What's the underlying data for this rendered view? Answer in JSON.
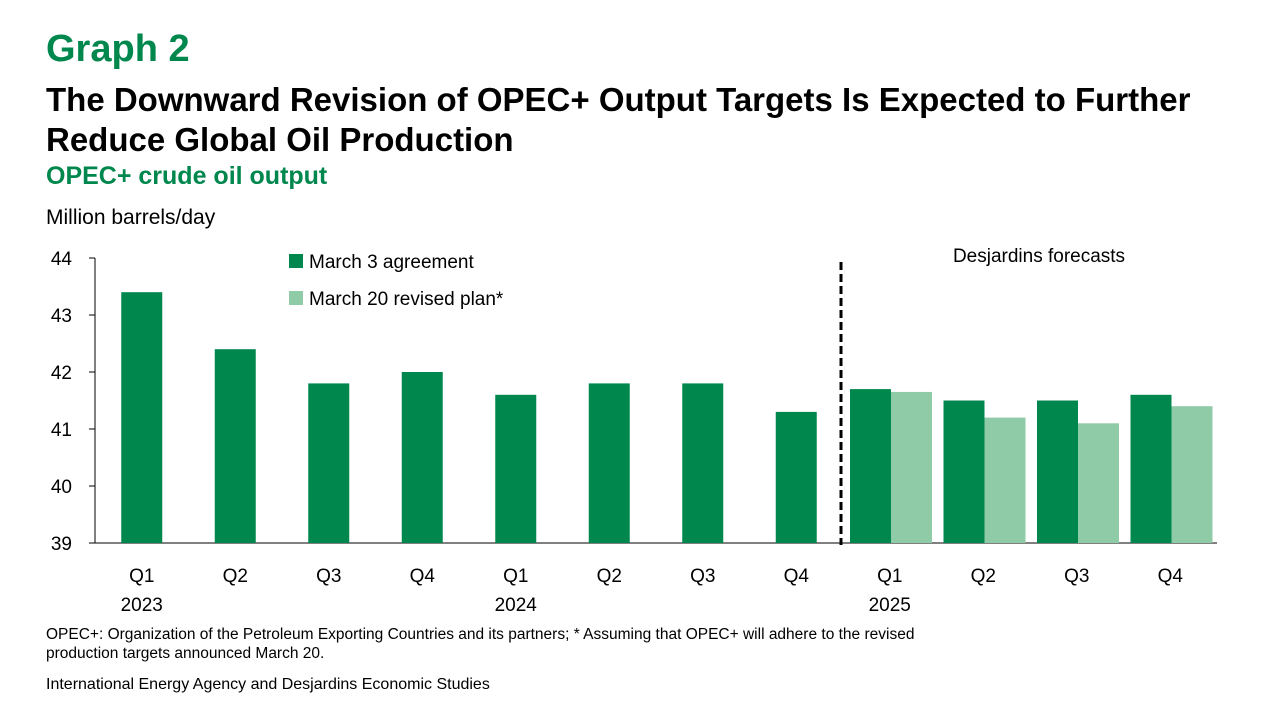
{
  "header": {
    "graph_label": "Graph 2",
    "title": "The Downward Revision of OPEC+ Output Targets Is Expected to Further Reduce Global Oil Production",
    "subtitle": "OPEC+ crude oil output"
  },
  "footer": {
    "notes": "OPEC+: Organization of the Petroleum Exporting Countries and its partners; * Assuming that OPEC+ will adhere to the revised production targets announced March 20.",
    "source": "International Energy Agency and Desjardins Economic Studies"
  },
  "colors": {
    "accent": "#00874D",
    "series_dark": "#00874D",
    "series_light": "#8FCBA7"
  },
  "chart_data": {
    "type": "bar",
    "ylabel": "Million barrels/day",
    "ylim": [
      39,
      44
    ],
    "yticks": [
      39,
      40,
      41,
      42,
      43,
      44
    ],
    "grid": false,
    "legend_position": "top-left",
    "categories": [
      "Q1",
      "Q2",
      "Q3",
      "Q4",
      "Q1",
      "Q2",
      "Q3",
      "Q4",
      "Q1",
      "Q2",
      "Q3",
      "Q4"
    ],
    "year_labels": [
      {
        "index": 0,
        "label": "2023"
      },
      {
        "index": 4,
        "label": "2024"
      },
      {
        "index": 8,
        "label": "2025"
      }
    ],
    "series": [
      {
        "name": "March 3 agreement",
        "color": "#00874D",
        "values": [
          43.4,
          42.4,
          41.8,
          42.0,
          41.6,
          41.8,
          41.8,
          41.3,
          41.7,
          41.5,
          41.5,
          41.6
        ]
      },
      {
        "name": "March 20 revised plan*",
        "color": "#8FCBA7",
        "values": [
          null,
          null,
          null,
          null,
          null,
          null,
          null,
          null,
          41.65,
          41.2,
          41.1,
          41.4
        ]
      }
    ],
    "forecast_start_index": 8,
    "annotation": "Desjardins forecasts"
  }
}
